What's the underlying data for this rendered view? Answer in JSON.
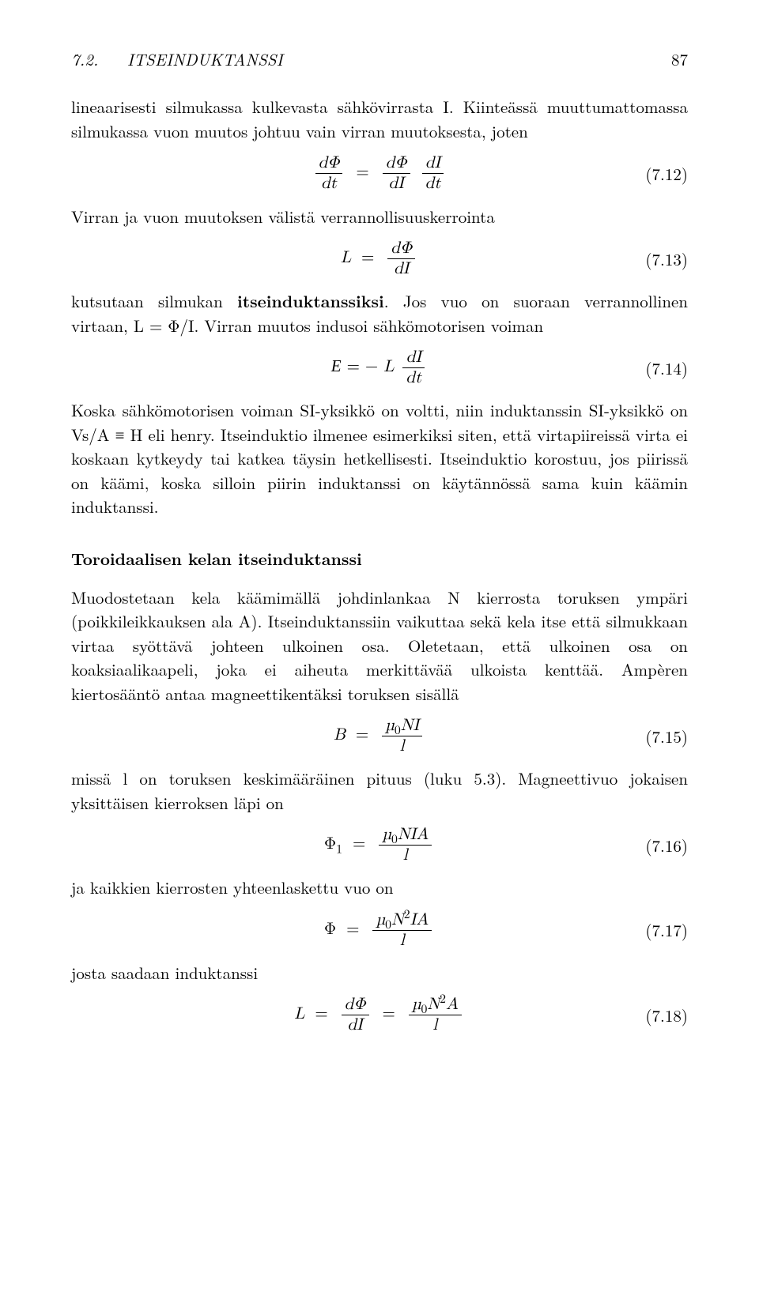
{
  "header": {
    "section_number": "7.2.",
    "section_title": "ITSEINDUKTANSSI",
    "page_number": "87"
  },
  "p1": "lineaarisesti silmukassa kulkevasta sähkövirrasta I. Kiinteässä muuttumattomassa silmukassa vuon muutos johtuu vain virran muutoksesta, joten",
  "eq12": {
    "lhs_num": "dΦ",
    "lhs_den": "dt",
    "mid_num": "dΦ",
    "mid_den": "dI",
    "rhs_num": "dI",
    "rhs_den": "dt",
    "num": "(7.12)"
  },
  "p2": "Virran ja vuon muutoksen välistä verrannollisuuskerrointa",
  "eq13": {
    "L": "L",
    "num_": "dΦ",
    "den": "dI",
    "num": "(7.13)"
  },
  "p3a": "kutsutaan silmukan ",
  "p3b": "itseinduktanssiksi",
  "p3c": ". Jos vuo on suoraan verrannollinen virtaan, L = Φ/I. Virran muutos indusoi sähkömotorisen voiman",
  "eq14": {
    "E": "E",
    "minus": " = −",
    "L": "L",
    "num_": "dI",
    "den": "dt",
    "num": "(7.14)"
  },
  "p4": "Koska sähkömotorisen voiman SI-yksikkö on voltti, niin induktanssin SI-yksikkö on Vs/A ≡ H eli henry. Itseinduktio ilmenee esimerkiksi siten, että virtapiireissä virta ei koskaan kytkeydy tai katkea täysin hetkellisesti. Itseinduktio korostuu, jos piirissä on käämi, koska silloin piirin induktanssi on käytännössä sama kuin käämin induktanssi.",
  "subhead": "Toroidaalisen kelan itseinduktanssi",
  "p5": "Muodostetaan kela käämimällä johdinlankaa N kierrosta toruksen ympäri (poikkileikkauksen ala A). Itseinduktanssiin vaikuttaa sekä kela itse että silmukkaan virtaa syöttävä johteen ulkoinen osa. Oletetaan, että ulkoinen osa on koaksiaalikaapeli, joka ei aiheuta merkittävää ulkoista kenttää. Ampèren kiertosääntö antaa magneettikentäksi toruksen sisällä",
  "eq15": {
    "B": "B",
    "num_": "µ",
    "num_sub": "0",
    "num_rest": "NI",
    "den": "l",
    "num": "(7.15)"
  },
  "p6": "missä l on toruksen keskimääräinen pituus (luku 5.3). Magneettivuo jokaisen yksittäisen kierroksen läpi on",
  "eq16": {
    "Phi": "Φ",
    "sub": "1",
    "num_": "µ",
    "num_sub": "0",
    "num_rest": "NIA",
    "den": "l",
    "num": "(7.16)"
  },
  "p7": "ja kaikkien kierrosten yhteenlaskettu vuo on",
  "eq17": {
    "Phi": "Φ",
    "num_": "µ",
    "num_sub": "0",
    "num_N": "N",
    "num_exp": "2",
    "num_rest": "IA",
    "den": "l",
    "num": "(7.17)"
  },
  "p8": "josta saadaan induktanssi",
  "eq18": {
    "L": "L",
    "f1_num": "dΦ",
    "f1_den": "dI",
    "num_": "µ",
    "num_sub": "0",
    "num_N": "N",
    "num_exp": "2",
    "num_rest": "A",
    "den": "l",
    "num": "(7.18)"
  }
}
